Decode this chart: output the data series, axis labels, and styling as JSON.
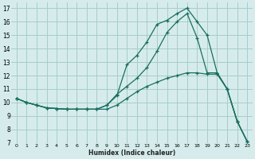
{
  "xlabel": "Humidex (Indice chaleur)",
  "bg_color": "#d6ecec",
  "grid_color": "#a8cccc",
  "line_color": "#1a6e60",
  "xlim": [
    -0.5,
    23.5
  ],
  "ylim": [
    7,
    17.4
  ],
  "xticks": [
    0,
    1,
    2,
    3,
    4,
    5,
    6,
    7,
    8,
    9,
    10,
    11,
    12,
    13,
    14,
    15,
    16,
    17,
    18,
    19,
    20,
    21,
    22,
    23
  ],
  "yticks": [
    7,
    8,
    9,
    10,
    11,
    12,
    13,
    14,
    15,
    16,
    17
  ],
  "line1_x": [
    0,
    1,
    2,
    3,
    4,
    5,
    6,
    7,
    8,
    9,
    10,
    11,
    12,
    13,
    14,
    15,
    16,
    17,
    18,
    19,
    20,
    21,
    22,
    23
  ],
  "line1_y": [
    10.3,
    10.0,
    9.8,
    9.6,
    9.55,
    9.5,
    9.5,
    9.5,
    9.5,
    9.8,
    10.5,
    12.8,
    13.5,
    14.5,
    15.8,
    16.1,
    16.6,
    17.0,
    16.0,
    15.0,
    12.2,
    11.0,
    8.6,
    7.1
  ],
  "line2_x": [
    0,
    1,
    2,
    3,
    4,
    5,
    6,
    7,
    8,
    9,
    10,
    11,
    12,
    13,
    14,
    15,
    16,
    17,
    18,
    19,
    20,
    21,
    22,
    23
  ],
  "line2_y": [
    10.3,
    10.0,
    9.8,
    9.6,
    9.55,
    9.5,
    9.5,
    9.5,
    9.5,
    9.8,
    10.6,
    11.2,
    11.8,
    12.6,
    13.8,
    15.2,
    16.0,
    16.6,
    14.8,
    12.2,
    12.2,
    11.0,
    8.6,
    7.1
  ],
  "line3_x": [
    0,
    1,
    2,
    3,
    4,
    5,
    6,
    7,
    8,
    9,
    10,
    11,
    12,
    13,
    14,
    15,
    16,
    17,
    18,
    19,
    20,
    21,
    22,
    23
  ],
  "line3_y": [
    10.3,
    10.0,
    9.8,
    9.6,
    9.55,
    9.5,
    9.5,
    9.5,
    9.5,
    9.5,
    9.8,
    10.3,
    10.8,
    11.2,
    11.5,
    11.8,
    12.0,
    12.2,
    12.2,
    12.1,
    12.1,
    11.0,
    8.6,
    7.1
  ]
}
